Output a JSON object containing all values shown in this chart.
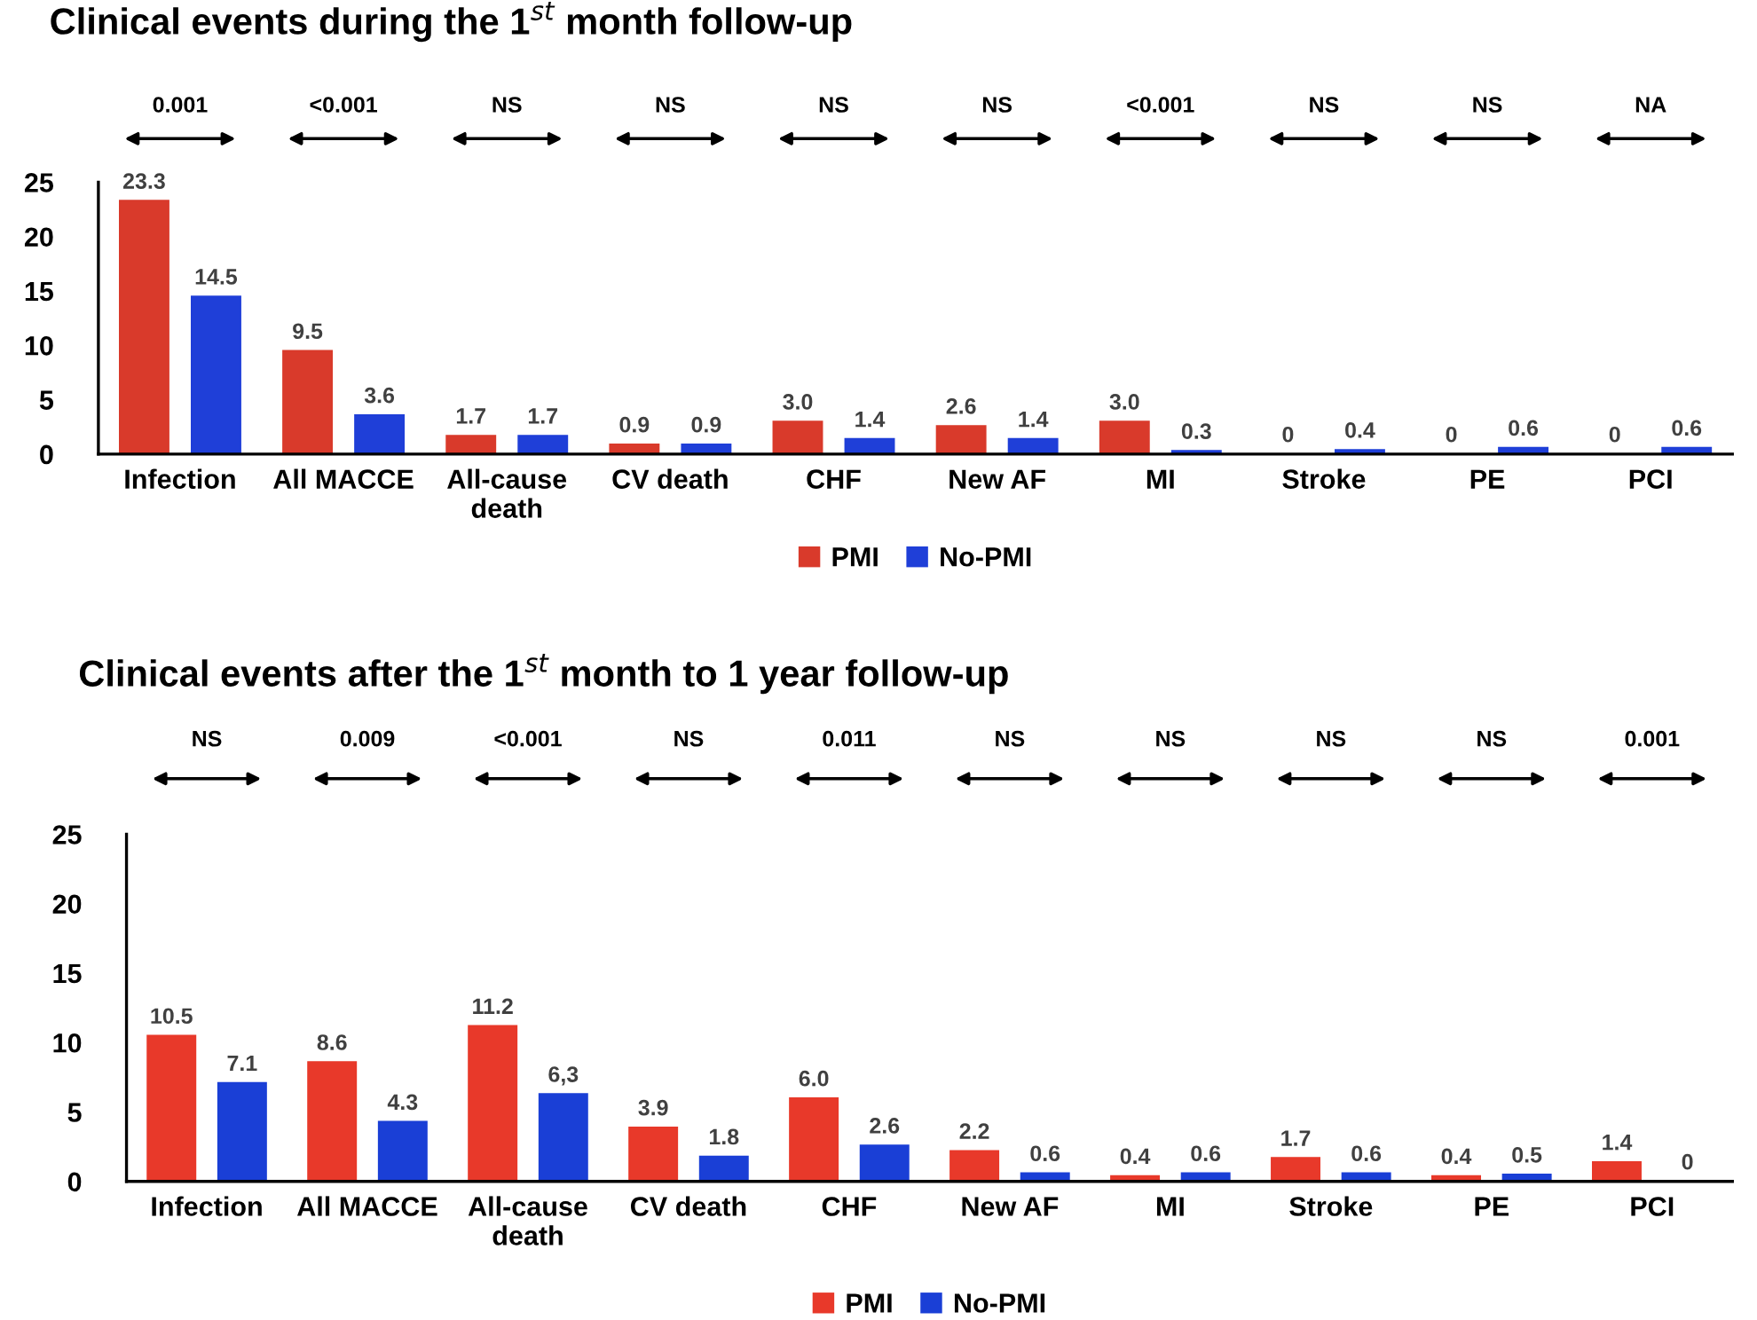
{
  "chart_data": [
    {
      "type": "bar",
      "title": "Clinical events during the 1$^{st}$ month follow-up",
      "categories": [
        "Infection",
        "All MACCE",
        "All-cause death",
        "CV death",
        "CHF",
        "New AF",
        "MI",
        "Stroke",
        "PE",
        "PCI"
      ],
      "series": [
        {
          "name": "PMI",
          "color": "#d93a2b",
          "values": [
            23.3,
            9.5,
            1.7,
            0.9,
            3.0,
            2.6,
            3.0,
            0,
            0,
            0
          ],
          "value_labels": [
            "23.3",
            "9.5",
            "1.7",
            "0.9",
            "3.0",
            "2.6",
            "3.0",
            "0",
            "0",
            "0"
          ]
        },
        {
          "name": "No-PMI",
          "color": "#1f3fd8",
          "values": [
            14.5,
            3.6,
            1.7,
            0.9,
            1.4,
            1.4,
            0.3,
            0.4,
            0.6,
            0.6
          ],
          "value_labels": [
            "14.5",
            "3.6",
            "1.7",
            "0.9",
            "1.4",
            "1.4",
            "0.3",
            "0.4",
            "0.6",
            "0.6"
          ]
        }
      ],
      "annotations": [
        "0.001",
        "<0.001",
        "NS",
        "NS",
        "NS",
        "NS",
        "<0.001",
        "NS",
        "NS",
        "NA"
      ],
      "ylim": [
        0,
        25
      ],
      "yticks": [
        0,
        5,
        10,
        15,
        20,
        25
      ],
      "grid": false,
      "legend": "bottom"
    },
    {
      "type": "bar",
      "title": "Clinical events after the 1$^{st}$ month to 1 year follow-up",
      "categories": [
        "Infection",
        "All MACCE",
        "All-cause death",
        "CV death",
        "CHF",
        "New AF",
        "MI",
        "Stroke",
        "PE",
        "PCI"
      ],
      "series": [
        {
          "name": "PMI",
          "color": "#e8392a",
          "values": [
            10.5,
            8.6,
            11.2,
            3.9,
            6.0,
            2.2,
            0.4,
            1.7,
            0.4,
            1.4
          ],
          "value_labels": [
            "10.5",
            "8.6",
            "11.2",
            "3.9",
            "6.0",
            "2.2",
            "0.4",
            "1.7",
            "0.4",
            "1.4"
          ]
        },
        {
          "name": "No-PMI",
          "color": "#1a3fd6",
          "values": [
            7.1,
            4.3,
            6.3,
            1.8,
            2.6,
            0.6,
            0.6,
            0.6,
            0.5,
            0
          ],
          "value_labels": [
            "7.1",
            "4.3",
            "6,3",
            "1.8",
            "2.6",
            "0.6",
            "0.6",
            "0.6",
            "0.5",
            "0"
          ]
        }
      ],
      "annotations": [
        "NS",
        "0.009",
        "<0.001",
        "NS",
        "0.011",
        "NS",
        "NS",
        "NS",
        "NS",
        "0.001"
      ],
      "ylim": [
        0,
        25
      ],
      "yticks": [
        0,
        5,
        10,
        15,
        20,
        25
      ],
      "grid": false,
      "legend": "bottom"
    }
  ]
}
